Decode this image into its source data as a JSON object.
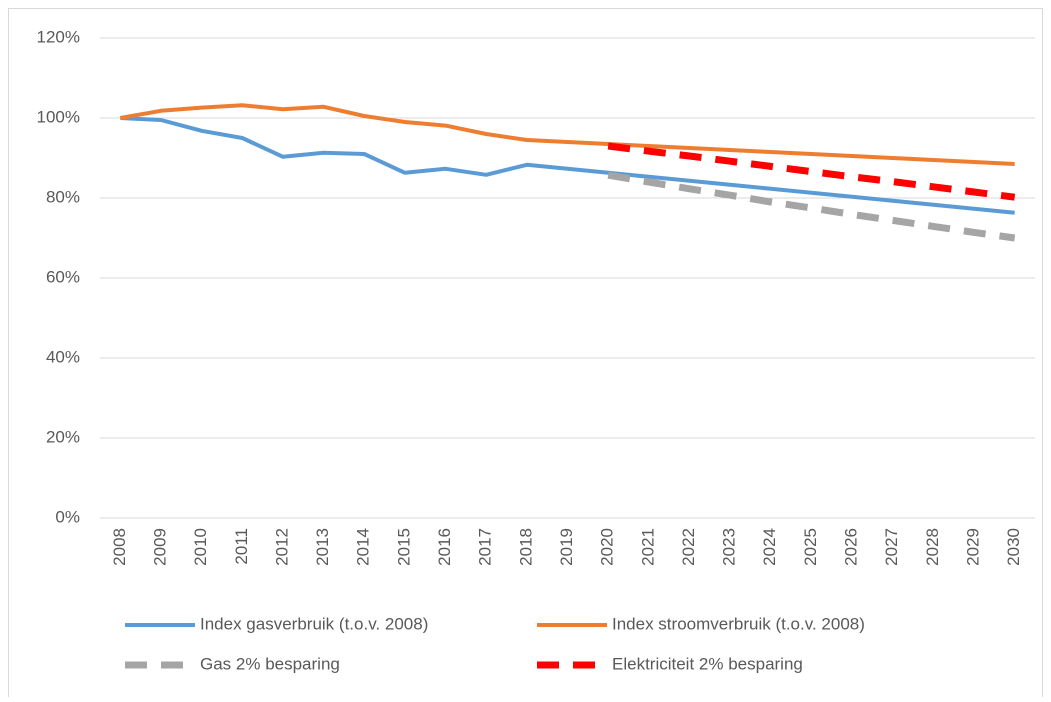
{
  "chart_data": {
    "type": "line",
    "categories": [
      "2008",
      "2009",
      "2010",
      "2011",
      "2012",
      "2013",
      "2014",
      "2015",
      "2016",
      "2017",
      "2018",
      "2019",
      "2020",
      "2021",
      "2022",
      "2023",
      "2024",
      "2025",
      "2026",
      "2027",
      "2028",
      "2029",
      "2030"
    ],
    "series": [
      {
        "name": "Index gasverbruik (t.o.v. 2008)",
        "color": "#5b9bd5",
        "dashed": false,
        "values": [
          100,
          99.5,
          96.8,
          95,
          90.3,
          91.3,
          91,
          86.3,
          87.3,
          85.8,
          88.3,
          87.3,
          86.3,
          85.3,
          84.3,
          83.3,
          82.3,
          81.3,
          80.3,
          79.3,
          78.3,
          77.3,
          76.3
        ]
      },
      {
        "name": "Index stroomverbruik (t.o.v. 2008)",
        "color": "#ed7d31",
        "dashed": false,
        "values": [
          100,
          101.8,
          102.6,
          103.2,
          102.2,
          102.8,
          100.5,
          99,
          98.1,
          96,
          94.5,
          94,
          93.5,
          93,
          92.5,
          92,
          91.5,
          91,
          90.5,
          90,
          89.5,
          89,
          88.5
        ]
      },
      {
        "name": "Gas 2% besparing",
        "color": "#a5a5a5",
        "dashed": true,
        "values": [
          null,
          null,
          null,
          null,
          null,
          null,
          null,
          null,
          null,
          null,
          null,
          null,
          85.7,
          84,
          82.3,
          80.7,
          79,
          77.5,
          75.9,
          74.4,
          72.9,
          71.4,
          70
        ]
      },
      {
        "name": "Elektriciteit 2% besparing",
        "color": "#ff0000",
        "dashed": true,
        "values": [
          null,
          null,
          null,
          null,
          null,
          null,
          null,
          null,
          null,
          null,
          null,
          null,
          93,
          91.7,
          90.5,
          89.2,
          87.9,
          86.6,
          85.3,
          84.1,
          82.8,
          81.5,
          80.2
        ]
      }
    ],
    "ylim": [
      0,
      120
    ],
    "yticks": [
      {
        "value": 0,
        "label": "0%"
      },
      {
        "value": 20,
        "label": "20%"
      },
      {
        "value": 40,
        "label": "40%"
      },
      {
        "value": 60,
        "label": "60%"
      },
      {
        "value": 80,
        "label": "80%"
      },
      {
        "value": 100,
        "label": "100%"
      },
      {
        "value": 120,
        "label": "120%"
      }
    ],
    "grid": true,
    "legend": "bottom"
  }
}
